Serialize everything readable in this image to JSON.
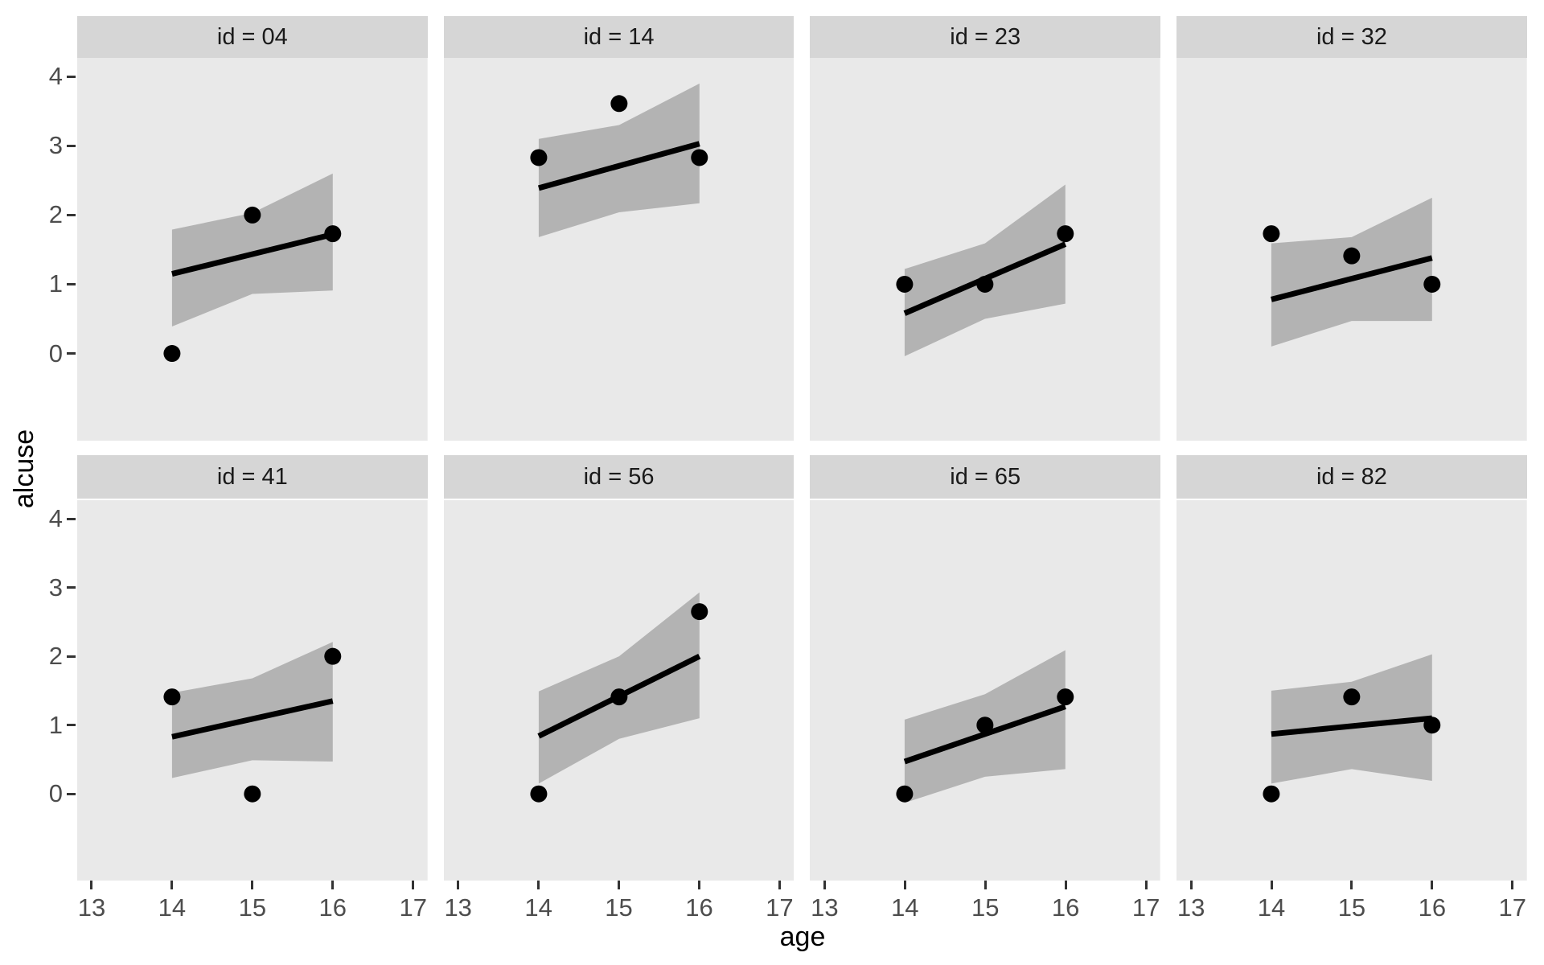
{
  "page": {
    "background": "#FFFFFF"
  },
  "chart_data": {
    "type": "scatter",
    "title": "",
    "xlabel": "age",
    "ylabel": "alcuse",
    "facet_variable": "id",
    "x_ticks": [
      13,
      14,
      15,
      16,
      17
    ],
    "y_ticks": [
      4,
      3,
      2,
      1,
      0
    ],
    "xlim": [
      12.82,
      17.18
    ],
    "ylim": [
      -1.26,
      4.27
    ],
    "grid": false,
    "legend": "none",
    "colors": {
      "panel_bg": "#E9E9E9",
      "strip_bg": "#D6D6D6",
      "ribbon": "#B3B3B3",
      "trend_line": "#000000",
      "point": "#000000",
      "tick_label": "#4D4D4D",
      "axis_title": "#000000",
      "strip_text": "#1A1A1A",
      "tick_mark": "#333333"
    },
    "facets": [
      {
        "label": "id = 04",
        "points": [
          {
            "x": 14,
            "y": 0
          },
          {
            "x": 15,
            "y": 2
          },
          {
            "x": 16,
            "y": 1.73
          }
        ],
        "trend": {
          "x": [
            14,
            16
          ],
          "y": [
            1.15,
            1.72
          ]
        },
        "ribbon": {
          "x": [
            14,
            15,
            16
          ],
          "lower": [
            0.39,
            0.86,
            0.91
          ],
          "upper": [
            1.79,
            2.03,
            2.6
          ]
        }
      },
      {
        "label": "id = 14",
        "points": [
          {
            "x": 14,
            "y": 2.83
          },
          {
            "x": 15,
            "y": 3.61
          },
          {
            "x": 16,
            "y": 2.83
          }
        ],
        "trend": {
          "x": [
            14,
            16
          ],
          "y": [
            2.39,
            3.03
          ]
        },
        "ribbon": {
          "x": [
            14,
            15,
            16
          ],
          "lower": [
            1.68,
            2.04,
            2.17
          ],
          "upper": [
            3.1,
            3.3,
            3.9
          ]
        }
      },
      {
        "label": "id = 23",
        "points": [
          {
            "x": 14,
            "y": 1
          },
          {
            "x": 15,
            "y": 1
          },
          {
            "x": 16,
            "y": 1.73
          }
        ],
        "trend": {
          "x": [
            14,
            16
          ],
          "y": [
            0.58,
            1.58
          ]
        },
        "ribbon": {
          "x": [
            14,
            15,
            16
          ],
          "lower": [
            -0.04,
            0.5,
            0.72
          ],
          "upper": [
            1.22,
            1.59,
            2.44
          ]
        }
      },
      {
        "label": "id = 32",
        "points": [
          {
            "x": 14,
            "y": 1.73
          },
          {
            "x": 15,
            "y": 1.41
          },
          {
            "x": 16,
            "y": 1
          }
        ],
        "trend": {
          "x": [
            14,
            16
          ],
          "y": [
            0.78,
            1.38
          ]
        },
        "ribbon": {
          "x": [
            14,
            15,
            16
          ],
          "lower": [
            0.1,
            0.47,
            0.47
          ],
          "upper": [
            1.59,
            1.68,
            2.25
          ]
        }
      },
      {
        "label": "id = 41",
        "points": [
          {
            "x": 14,
            "y": 1.41
          },
          {
            "x": 15,
            "y": 0
          },
          {
            "x": 16,
            "y": 2
          }
        ],
        "trend": {
          "x": [
            14,
            16
          ],
          "y": [
            0.83,
            1.35
          ]
        },
        "ribbon": {
          "x": [
            14,
            15,
            16
          ],
          "lower": [
            0.23,
            0.49,
            0.47
          ],
          "upper": [
            1.47,
            1.68,
            2.21
          ]
        }
      },
      {
        "label": "id = 56",
        "points": [
          {
            "x": 14,
            "y": 0
          },
          {
            "x": 15,
            "y": 1.41
          },
          {
            "x": 16,
            "y": 2.65
          }
        ],
        "trend": {
          "x": [
            14,
            16
          ],
          "y": [
            0.84,
            2.0
          ]
        },
        "ribbon": {
          "x": [
            14,
            15,
            16
          ],
          "lower": [
            0.15,
            0.8,
            1.1
          ],
          "upper": [
            1.49,
            2.0,
            2.93
          ]
        }
      },
      {
        "label": "id = 65",
        "points": [
          {
            "x": 14,
            "y": 0
          },
          {
            "x": 15,
            "y": 1
          },
          {
            "x": 16,
            "y": 1.41
          }
        ],
        "trend": {
          "x": [
            14,
            16
          ],
          "y": [
            0.47,
            1.27
          ]
        },
        "ribbon": {
          "x": [
            14,
            15,
            16
          ],
          "lower": [
            -0.13,
            0.25,
            0.36
          ],
          "upper": [
            1.08,
            1.45,
            2.09
          ]
        }
      },
      {
        "label": "id = 82",
        "points": [
          {
            "x": 14,
            "y": 0
          },
          {
            "x": 15,
            "y": 1.41
          },
          {
            "x": 16,
            "y": 1
          }
        ],
        "trend": {
          "x": [
            14,
            16
          ],
          "y": [
            0.87,
            1.1
          ]
        },
        "ribbon": {
          "x": [
            14,
            15,
            16
          ],
          "lower": [
            0.15,
            0.36,
            0.19
          ],
          "upper": [
            1.5,
            1.63,
            2.03
          ]
        }
      }
    ]
  }
}
